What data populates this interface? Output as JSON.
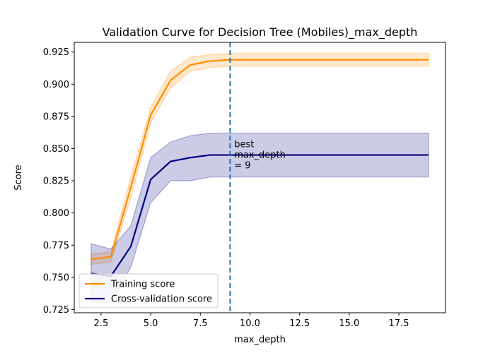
{
  "chart_data": {
    "type": "line",
    "title": "Validation Curve for Decision Tree (Mobiles)_max_depth",
    "xlabel": "max_depth",
    "ylabel": "Score",
    "xlim": [
      1.15,
      19.85
    ],
    "ylim": [
      0.7225,
      0.9325
    ],
    "x_ticks": [
      2.5,
      5.0,
      7.5,
      10.0,
      12.5,
      15.0,
      17.5
    ],
    "x_tick_labels": [
      "2.5",
      "5.0",
      "7.5",
      "10.0",
      "12.5",
      "15.0",
      "17.5"
    ],
    "y_ticks": [
      0.725,
      0.75,
      0.775,
      0.8,
      0.825,
      0.85,
      0.875,
      0.9,
      0.925
    ],
    "y_tick_labels": [
      "0.725",
      "0.750",
      "0.775",
      "0.800",
      "0.825",
      "0.850",
      "0.875",
      "0.900",
      "0.925"
    ],
    "x": [
      2,
      3,
      4,
      5,
      6,
      7,
      8,
      9,
      10,
      11,
      12,
      13,
      14,
      15,
      16,
      17,
      18,
      19
    ],
    "series": [
      {
        "name": "Training score",
        "color": "#ff8c00",
        "values": [
          0.764,
          0.766,
          0.82,
          0.876,
          0.903,
          0.915,
          0.918,
          0.919,
          0.919,
          0.919,
          0.919,
          0.919,
          0.919,
          0.919,
          0.919,
          0.919,
          0.919,
          0.919
        ],
        "lower": [
          0.76,
          0.762,
          0.812,
          0.87,
          0.897,
          0.91,
          0.913,
          0.914,
          0.914,
          0.914,
          0.914,
          0.914,
          0.914,
          0.914,
          0.914,
          0.914,
          0.914,
          0.914
        ],
        "upper": [
          0.768,
          0.77,
          0.828,
          0.882,
          0.91,
          0.921,
          0.923,
          0.924,
          0.924,
          0.924,
          0.924,
          0.924,
          0.924,
          0.924,
          0.924,
          0.924,
          0.924,
          0.924
        ]
      },
      {
        "name": "Cross-validation score",
        "color": "#000080",
        "values": [
          0.753,
          0.751,
          0.774,
          0.826,
          0.84,
          0.843,
          0.845,
          0.845,
          0.845,
          0.845,
          0.845,
          0.845,
          0.845,
          0.845,
          0.845,
          0.845,
          0.845,
          0.845
        ],
        "lower": [
          0.731,
          0.73,
          0.758,
          0.808,
          0.825,
          0.825,
          0.828,
          0.828,
          0.828,
          0.828,
          0.828,
          0.828,
          0.828,
          0.828,
          0.828,
          0.828,
          0.828,
          0.828
        ],
        "upper": [
          0.776,
          0.772,
          0.79,
          0.843,
          0.855,
          0.86,
          0.862,
          0.862,
          0.862,
          0.862,
          0.862,
          0.862,
          0.862,
          0.862,
          0.862,
          0.862,
          0.862,
          0.862
        ]
      }
    ],
    "vline": {
      "x": 9,
      "color": "#1f77b4"
    },
    "annotation": {
      "lines": [
        "best",
        "max_depth",
        "= 9"
      ],
      "x": 9.1,
      "y": 0.845
    },
    "legend_position": "lower-left",
    "grid": false
  }
}
